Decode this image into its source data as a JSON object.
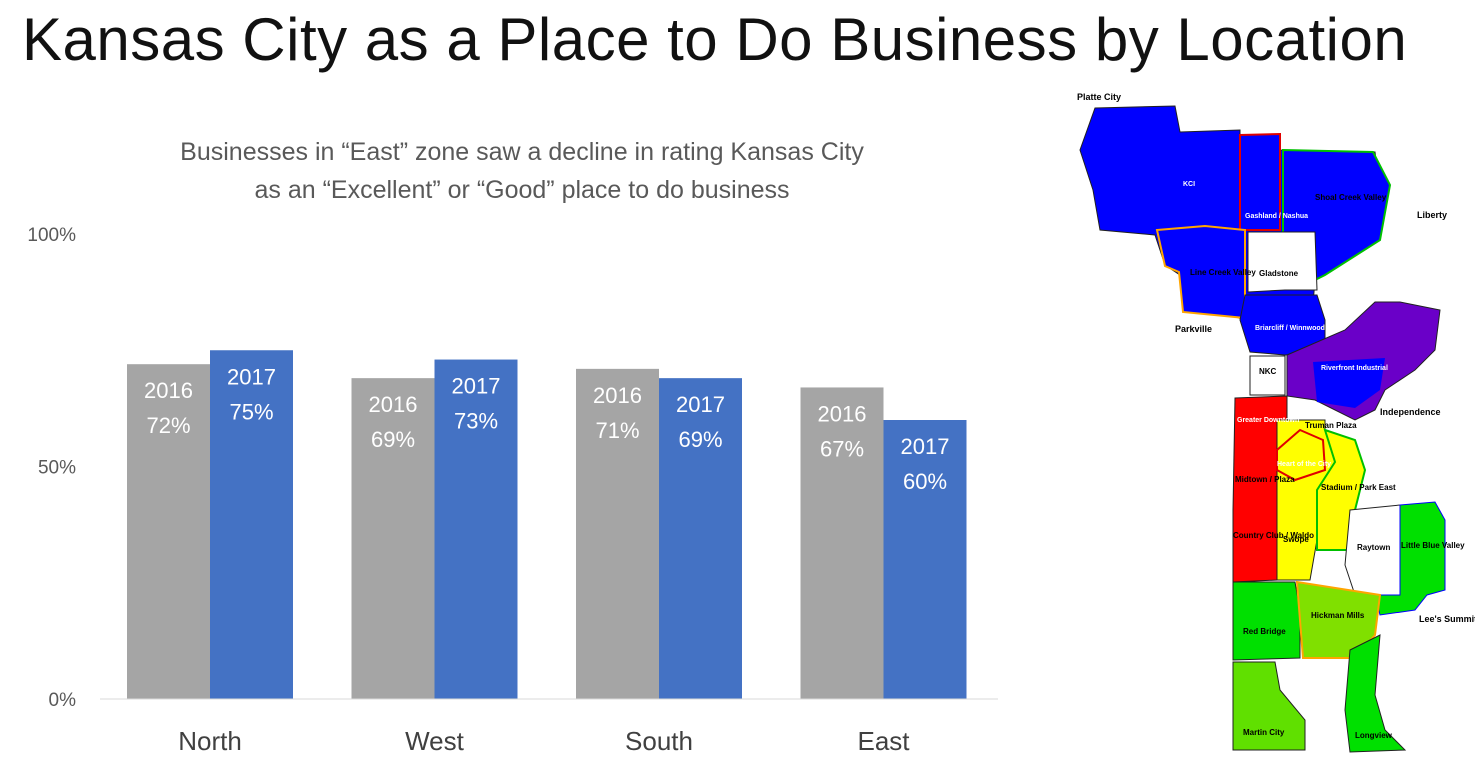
{
  "title": "Kansas City as a Place to Do Business by Location",
  "chart_data": {
    "type": "bar",
    "subtitle_lines": [
      "Businesses in “East” zone saw a decline in rating Kansas City",
      "as an “Excellent” or “Good” place to do business"
    ],
    "categories": [
      "North",
      "West",
      "South",
      "East"
    ],
    "series": [
      {
        "name": "2016",
        "values": [
          72,
          69,
          71,
          67
        ],
        "color": "#a5a5a5"
      },
      {
        "name": "2017",
        "values": [
          75,
          73,
          69,
          60
        ],
        "color": "#4472c4"
      }
    ],
    "ylim": [
      0,
      100
    ],
    "yticks": [
      {
        "value": 0,
        "label": "0%"
      },
      {
        "value": 50,
        "label": "50%"
      },
      {
        "value": 100,
        "label": "100%"
      }
    ],
    "grid": false,
    "legend": "none",
    "data_label_suffix": "%"
  },
  "map": {
    "labels": [
      "Platte City",
      "KCI",
      "Gashland / Nashua",
      "Shoal Creek Valley",
      "Liberty",
      "Line Creek Valley",
      "Gladstone",
      "Briarcliff / Winnwood",
      "Parkville",
      "NKC",
      "Riverfront Industrial",
      "Independence",
      "Greater Downtown",
      "Truman Plaza",
      "Heart of the City",
      "Midtown / Plaza",
      "Stadium / Park East",
      "Country Club / Waldo",
      "Swope",
      "Raytown",
      "Little Blue Valley",
      "Lee's Summit",
      "Red Bridge",
      "Hickman Mills",
      "Martin City",
      "Longview"
    ]
  }
}
